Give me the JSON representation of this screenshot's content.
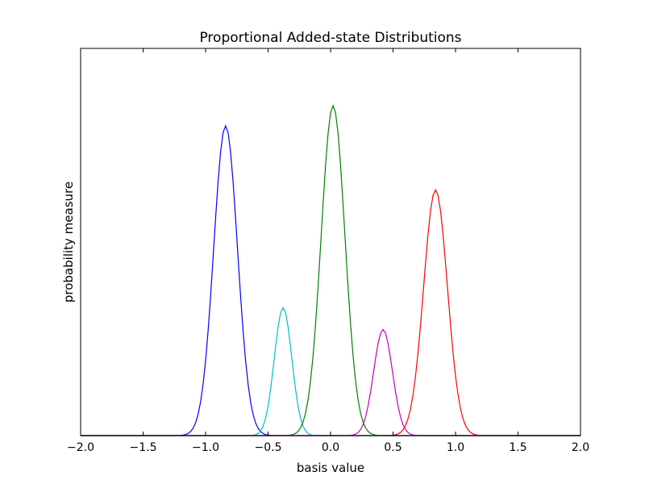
{
  "chart_data": {
    "type": "line",
    "title": "Proportional Added-state Distributions",
    "xlabel": "basis value",
    "ylabel": "probability measure",
    "xlim": [
      -2.0,
      2.0
    ],
    "ylim": [
      0,
      1.15
    ],
    "grid": false,
    "xticks": [
      "−2.0",
      "−1.5",
      "−1.0",
      "−0.5",
      "0.0",
      "0.5",
      "1.0",
      "1.5",
      "2.0"
    ],
    "series": [
      {
        "color": "#0000ff",
        "mean": -0.84,
        "sd": 0.095,
        "peak": 0.92
      },
      {
        "color": "#00bfbf",
        "mean": -0.38,
        "sd": 0.07,
        "peak": 0.38
      },
      {
        "color": "#008000",
        "mean": 0.02,
        "sd": 0.095,
        "peak": 0.98
      },
      {
        "color": "#bf00bf",
        "mean": 0.42,
        "sd": 0.075,
        "peak": 0.315
      },
      {
        "color": "#ff0000",
        "mean": 0.84,
        "sd": 0.095,
        "peak": 0.73
      }
    ]
  }
}
